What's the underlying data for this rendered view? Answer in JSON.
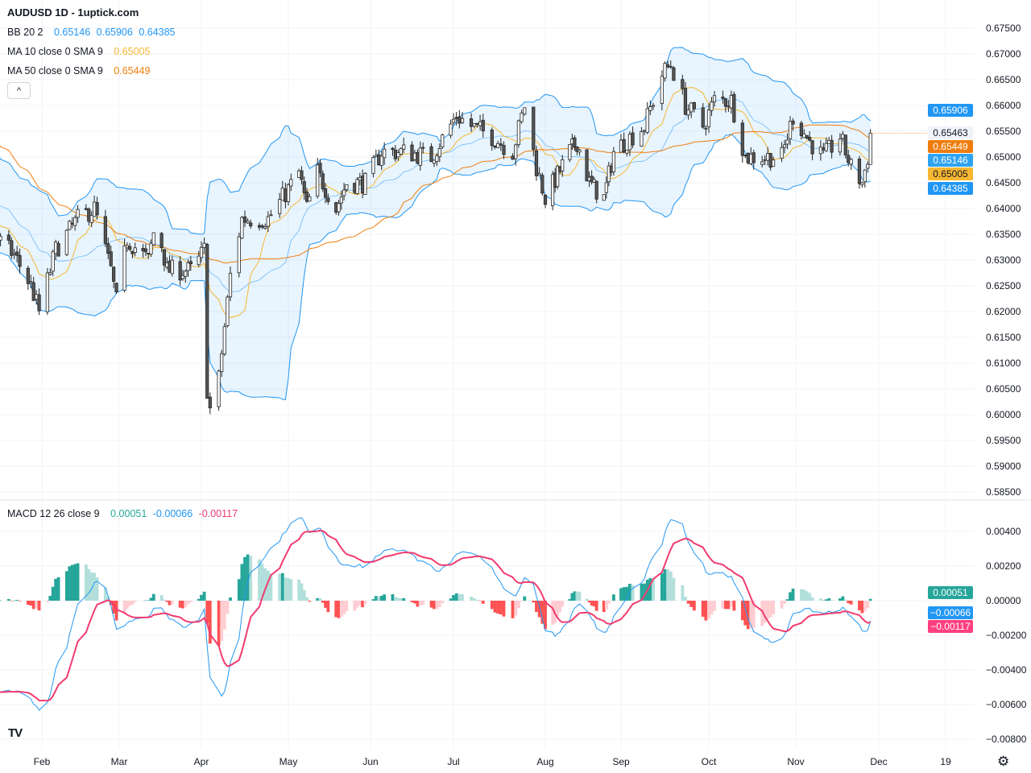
{
  "header": {
    "title": "AUDUSD 1D - 1uptick.com"
  },
  "legend": {
    "bb": {
      "label": "BB 20 2",
      "upper_mid_lower": [
        "0.65146",
        "0.65906",
        "0.64385"
      ]
    },
    "ma10": {
      "label": "MA 10 close 0 SMA 9",
      "value": "0.65005"
    },
    "ma50": {
      "label": "MA 50 close 0 SMA 9",
      "value": "0.65449"
    },
    "macd": {
      "label": "MACD 12 26 close 9",
      "values": [
        "0.00051",
        "-0.00066",
        "-0.00117"
      ]
    },
    "collapse_icon": "chevron-up-icon"
  },
  "price_tags": [
    {
      "value": "0.65906",
      "bg": "#2196f3",
      "fg": "#ffffff",
      "name": "bb-upper-tag"
    },
    {
      "value": "0.65463",
      "bg": "#f0f3fa",
      "fg": "#131722",
      "name": "last-price-tag"
    },
    {
      "value": "0.65449",
      "bg": "#ef7d0e",
      "fg": "#ffffff",
      "name": "ma50-tag"
    },
    {
      "value": "0.65146",
      "bg": "#2ea3f2",
      "fg": "#ffffff",
      "name": "bb-basis-tag"
    },
    {
      "value": "0.65005",
      "bg": "#f7b733",
      "fg": "#131722",
      "name": "ma10-tag"
    },
    {
      "value": "0.64385",
      "bg": "#2196f3",
      "fg": "#ffffff",
      "name": "bb-lower-tag"
    }
  ],
  "macd_tags": [
    {
      "value": "0.00051",
      "bg": "#26a69a",
      "fg": "#ffffff",
      "name": "histogram-tag"
    },
    {
      "value": "-0.00066",
      "bg": "#2196f3",
      "fg": "#ffffff",
      "name": "macd-tag"
    },
    {
      "value": "-0.00117",
      "bg": "#ff4081",
      "fg": "#ffffff",
      "name": "signal-tag"
    }
  ],
  "colors": {
    "bb": "#2196f3",
    "bb_fill": "rgba(33,150,243,0.10)",
    "ma10": "#f7b733",
    "ma50": "#ef7d0e",
    "macd": "#2196f3",
    "signal": "#f23b6f",
    "hist_up": "#26a69a",
    "hist_up_fade": "#b2dfdb",
    "hist_dn": "#ff5252",
    "hist_dn_fade": "#ffcdd2",
    "candle_up": "#ffffff",
    "candle_down": "#555555",
    "grid": "#f0f3fa"
  },
  "chart_data": {
    "type": "candlestick",
    "symbol": "AUDUSD",
    "interval": "1D",
    "price_ticks": [
      "0.67500",
      "0.67000",
      "0.66500",
      "0.66000",
      "0.65500",
      "0.65000",
      "0.64500",
      "0.64000",
      "0.63500",
      "0.63000",
      "0.62500",
      "0.62000",
      "0.61500",
      "0.61000",
      "0.60500",
      "0.60000",
      "0.59500",
      "0.59000",
      "0.58500"
    ],
    "price_ylim": [
      0.5845,
      0.6755
    ],
    "macd_ticks": [
      "0.00400",
      "0.00200",
      "0.00000",
      "-0.00200",
      "-0.00400",
      "-0.00600",
      "-0.00800"
    ],
    "macd_ylim": [
      -0.0085,
      0.0048
    ],
    "x_ticks": [
      {
        "label": "Feb",
        "date": "2025-02-01"
      },
      {
        "label": "Mar",
        "date": "2025-03-01"
      },
      {
        "label": "Apr",
        "date": "2025-04-01"
      },
      {
        "label": "May",
        "date": "2025-05-01"
      },
      {
        "label": "Jun",
        "date": "2025-06-01"
      },
      {
        "label": "Jul",
        "date": "2025-07-01"
      },
      {
        "label": "Aug",
        "date": "2025-08-01"
      },
      {
        "label": "Sep",
        "date": "2025-09-01"
      },
      {
        "label": "Oct",
        "date": "2025-10-01"
      },
      {
        "label": "Nov",
        "date": "2025-11-01"
      },
      {
        "label": "Dec",
        "date": "2025-12-01"
      },
      {
        "label": "19",
        "date": "2025-12-19"
      }
    ],
    "last_price": 0.65463,
    "approx_closes": [
      [
        "2025-01-16",
        0.634
      ],
      [
        "2025-01-22",
        0.631
      ],
      [
        "2025-01-28",
        0.625
      ],
      [
        "2025-01-31",
        0.62
      ],
      [
        "2025-02-06",
        0.632
      ],
      [
        "2025-02-14",
        0.638
      ],
      [
        "2025-02-20",
        0.64
      ],
      [
        "2025-02-26",
        0.628
      ],
      [
        "2025-02-28",
        0.622
      ],
      [
        "2025-03-04",
        0.634
      ],
      [
        "2025-03-12",
        0.63
      ],
      [
        "2025-03-15",
        0.638
      ],
      [
        "2025-03-19",
        0.628
      ],
      [
        "2025-03-29",
        0.628
      ],
      [
        "2025-04-02",
        0.632
      ],
      [
        "2025-04-03",
        0.605
      ],
      [
        "2025-04-05",
        0.597
      ],
      [
        "2025-04-08",
        0.612
      ],
      [
        "2025-04-11",
        0.627
      ],
      [
        "2025-04-15",
        0.638
      ],
      [
        "2025-04-24",
        0.638
      ],
      [
        "2025-05-05",
        0.647
      ],
      [
        "2025-05-08",
        0.64
      ],
      [
        "2025-05-12",
        0.647
      ],
      [
        "2025-05-19",
        0.64
      ],
      [
        "2025-05-23",
        0.645
      ],
      [
        "2025-05-30",
        0.645
      ],
      [
        "2025-06-05",
        0.651
      ],
      [
        "2025-06-13",
        0.651
      ],
      [
        "2025-06-23",
        0.65
      ],
      [
        "2025-07-02",
        0.658
      ],
      [
        "2025-07-07",
        0.656
      ],
      [
        "2025-07-14",
        0.654
      ],
      [
        "2025-07-21",
        0.651
      ],
      [
        "2025-07-25",
        0.66
      ],
      [
        "2025-07-29",
        0.648
      ],
      [
        "2025-08-01",
        0.642
      ],
      [
        "2025-08-11",
        0.651
      ],
      [
        "2025-08-14",
        0.653
      ],
      [
        "2025-08-19",
        0.645
      ],
      [
        "2025-08-25",
        0.642
      ],
      [
        "2025-08-29",
        0.651
      ],
      [
        "2025-09-09",
        0.656
      ],
      [
        "2025-09-15",
        0.666
      ],
      [
        "2025-09-18",
        0.668
      ],
      [
        "2025-09-23",
        0.66
      ],
      [
        "2025-09-29",
        0.656
      ],
      [
        "2025-10-03",
        0.661
      ],
      [
        "2025-10-09",
        0.661
      ],
      [
        "2025-10-14",
        0.65
      ],
      [
        "2025-10-20",
        0.65
      ],
      [
        "2025-10-27",
        0.65
      ],
      [
        "2025-10-31",
        0.658
      ],
      [
        "2025-11-06",
        0.653
      ],
      [
        "2025-11-11",
        0.65
      ],
      [
        "2025-11-17",
        0.654
      ],
      [
        "2025-11-21",
        0.648
      ],
      [
        "2025-11-25",
        0.645
      ],
      [
        "2025-11-27",
        0.65
      ],
      [
        "2025-11-28",
        0.65463
      ]
    ],
    "indicators": [
      "Bollinger Bands 20 2",
      "SMA 10",
      "SMA 50",
      "MACD 12 26 9"
    ]
  }
}
